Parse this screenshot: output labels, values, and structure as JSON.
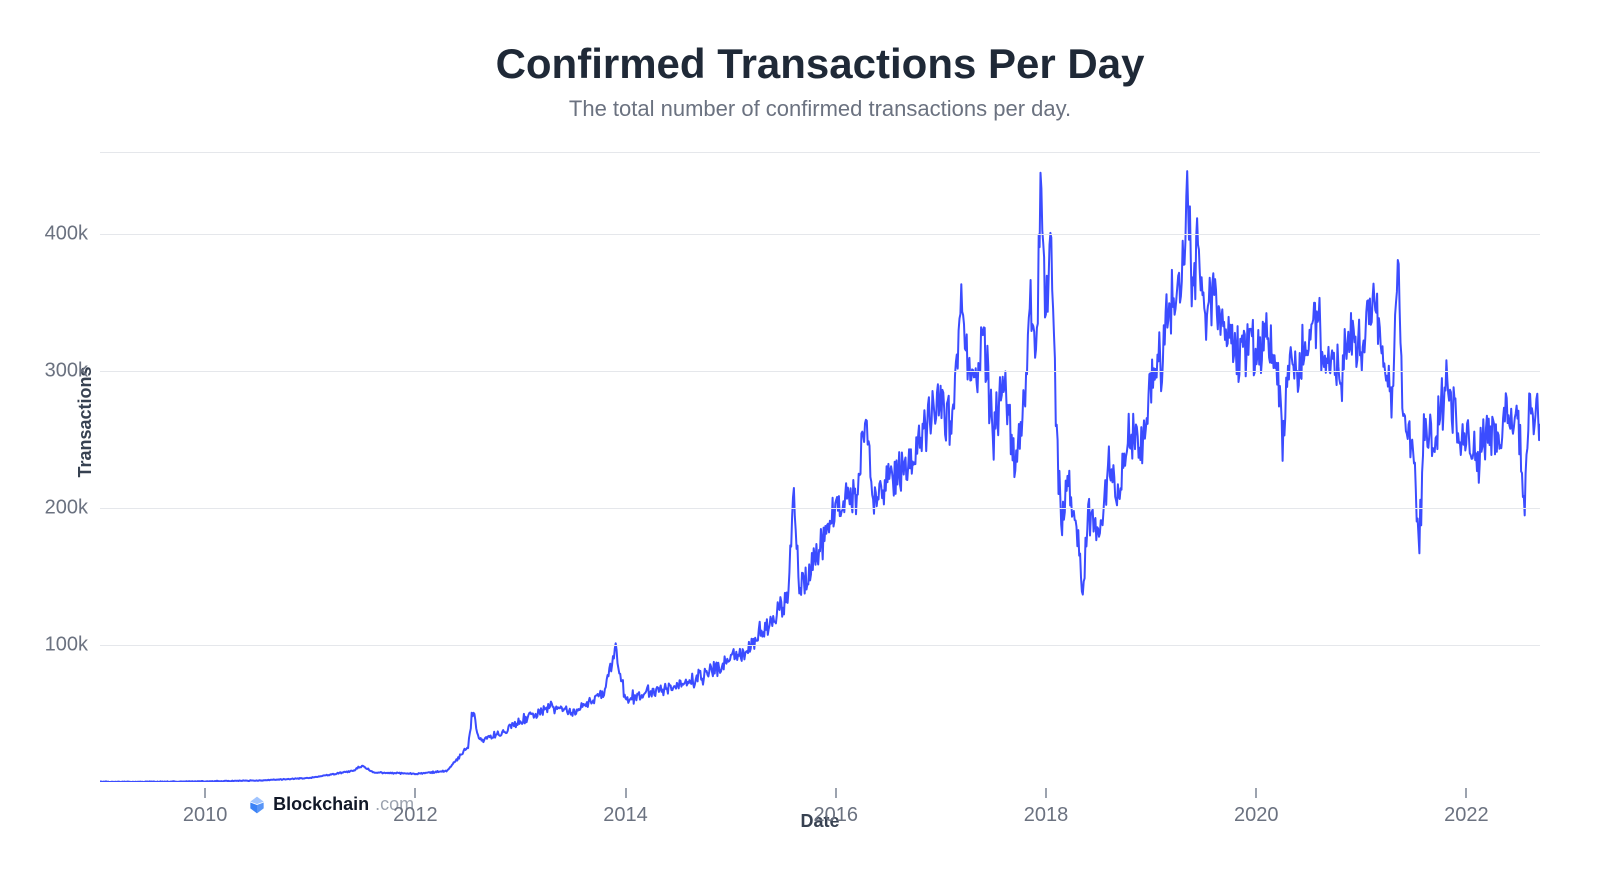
{
  "chart": {
    "type": "line",
    "title": "Confirmed Transactions Per Day",
    "title_fontsize": 42,
    "title_color": "#1f2937",
    "subtitle": "The total number of confirmed transactions per day.",
    "subtitle_fontsize": 22,
    "subtitle_color": "#6b7280",
    "ylabel": "Transactions",
    "xlabel": "Date",
    "axis_label_fontsize": 18,
    "axis_label_color": "#374151",
    "tick_label_fontsize": 20,
    "tick_label_color": "#6b7280",
    "background_color": "#ffffff",
    "grid_color": "#e5e7eb",
    "line_color": "#3b4cff",
    "line_width": 2,
    "xlim": [
      2009,
      2022.7
    ],
    "ylim": [
      0,
      460000
    ],
    "y_ticks": [
      {
        "value": 100000,
        "label": "100k"
      },
      {
        "value": 200000,
        "label": "200k"
      },
      {
        "value": 300000,
        "label": "300k"
      },
      {
        "value": 400000,
        "label": "400k"
      }
    ],
    "x_ticks": [
      {
        "value": 2010,
        "label": "2010"
      },
      {
        "value": 2012,
        "label": "2012"
      },
      {
        "value": 2014,
        "label": "2014"
      },
      {
        "value": 2016,
        "label": "2016"
      },
      {
        "value": 2018,
        "label": "2018"
      },
      {
        "value": 2020,
        "label": "2020"
      },
      {
        "value": 2022,
        "label": "2022"
      }
    ],
    "plot_top_gridline": true,
    "series": {
      "noise_amplitude_factor": 0.12,
      "noise_frequency": 80,
      "anchors": [
        {
          "x": 2009.0,
          "y": 100
        },
        {
          "x": 2009.5,
          "y": 200
        },
        {
          "x": 2010.0,
          "y": 500
        },
        {
          "x": 2010.5,
          "y": 1000
        },
        {
          "x": 2011.0,
          "y": 3000
        },
        {
          "x": 2011.4,
          "y": 8000
        },
        {
          "x": 2011.5,
          "y": 12000
        },
        {
          "x": 2011.6,
          "y": 7000
        },
        {
          "x": 2012.0,
          "y": 6000
        },
        {
          "x": 2012.3,
          "y": 8000
        },
        {
          "x": 2012.5,
          "y": 25000
        },
        {
          "x": 2012.55,
          "y": 55000
        },
        {
          "x": 2012.6,
          "y": 30000
        },
        {
          "x": 2012.8,
          "y": 35000
        },
        {
          "x": 2013.0,
          "y": 45000
        },
        {
          "x": 2013.3,
          "y": 55000
        },
        {
          "x": 2013.5,
          "y": 50000
        },
        {
          "x": 2013.8,
          "y": 65000
        },
        {
          "x": 2013.9,
          "y": 98000
        },
        {
          "x": 2014.0,
          "y": 60000
        },
        {
          "x": 2014.2,
          "y": 65000
        },
        {
          "x": 2014.5,
          "y": 70000
        },
        {
          "x": 2014.8,
          "y": 80000
        },
        {
          "x": 2015.0,
          "y": 90000
        },
        {
          "x": 2015.2,
          "y": 100000
        },
        {
          "x": 2015.4,
          "y": 120000
        },
        {
          "x": 2015.55,
          "y": 135000
        },
        {
          "x": 2015.6,
          "y": 210000
        },
        {
          "x": 2015.65,
          "y": 140000
        },
        {
          "x": 2015.8,
          "y": 160000
        },
        {
          "x": 2016.0,
          "y": 200000
        },
        {
          "x": 2016.2,
          "y": 210000
        },
        {
          "x": 2016.3,
          "y": 270000
        },
        {
          "x": 2016.35,
          "y": 200000
        },
        {
          "x": 2016.5,
          "y": 220000
        },
        {
          "x": 2016.7,
          "y": 230000
        },
        {
          "x": 2016.9,
          "y": 270000
        },
        {
          "x": 2017.0,
          "y": 280000
        },
        {
          "x": 2017.1,
          "y": 260000
        },
        {
          "x": 2017.2,
          "y": 350000
        },
        {
          "x": 2017.3,
          "y": 280000
        },
        {
          "x": 2017.4,
          "y": 330000
        },
        {
          "x": 2017.5,
          "y": 250000
        },
        {
          "x": 2017.6,
          "y": 300000
        },
        {
          "x": 2017.7,
          "y": 230000
        },
        {
          "x": 2017.8,
          "y": 280000
        },
        {
          "x": 2017.85,
          "y": 370000
        },
        {
          "x": 2017.9,
          "y": 300000
        },
        {
          "x": 2017.95,
          "y": 425000
        },
        {
          "x": 2018.0,
          "y": 350000
        },
        {
          "x": 2018.05,
          "y": 380000
        },
        {
          "x": 2018.1,
          "y": 250000
        },
        {
          "x": 2018.15,
          "y": 180000
        },
        {
          "x": 2018.2,
          "y": 220000
        },
        {
          "x": 2018.3,
          "y": 180000
        },
        {
          "x": 2018.35,
          "y": 135000
        },
        {
          "x": 2018.4,
          "y": 200000
        },
        {
          "x": 2018.5,
          "y": 180000
        },
        {
          "x": 2018.6,
          "y": 230000
        },
        {
          "x": 2018.7,
          "y": 210000
        },
        {
          "x": 2018.8,
          "y": 260000
        },
        {
          "x": 2018.9,
          "y": 240000
        },
        {
          "x": 2019.0,
          "y": 290000
        },
        {
          "x": 2019.1,
          "y": 310000
        },
        {
          "x": 2019.2,
          "y": 350000
        },
        {
          "x": 2019.3,
          "y": 370000
        },
        {
          "x": 2019.35,
          "y": 445000
        },
        {
          "x": 2019.4,
          "y": 350000
        },
        {
          "x": 2019.45,
          "y": 400000
        },
        {
          "x": 2019.5,
          "y": 340000
        },
        {
          "x": 2019.6,
          "y": 360000
        },
        {
          "x": 2019.7,
          "y": 330000
        },
        {
          "x": 2019.8,
          "y": 310000
        },
        {
          "x": 2019.9,
          "y": 320000
        },
        {
          "x": 2020.0,
          "y": 310000
        },
        {
          "x": 2020.1,
          "y": 330000
        },
        {
          "x": 2020.2,
          "y": 300000
        },
        {
          "x": 2020.25,
          "y": 240000
        },
        {
          "x": 2020.3,
          "y": 310000
        },
        {
          "x": 2020.4,
          "y": 300000
        },
        {
          "x": 2020.5,
          "y": 320000
        },
        {
          "x": 2020.6,
          "y": 330000
        },
        {
          "x": 2020.7,
          "y": 310000
        },
        {
          "x": 2020.8,
          "y": 300000
        },
        {
          "x": 2020.9,
          "y": 330000
        },
        {
          "x": 2021.0,
          "y": 320000
        },
        {
          "x": 2021.1,
          "y": 350000
        },
        {
          "x": 2021.2,
          "y": 310000
        },
        {
          "x": 2021.3,
          "y": 280000
        },
        {
          "x": 2021.35,
          "y": 380000
        },
        {
          "x": 2021.4,
          "y": 270000
        },
        {
          "x": 2021.5,
          "y": 240000
        },
        {
          "x": 2021.55,
          "y": 170000
        },
        {
          "x": 2021.6,
          "y": 260000
        },
        {
          "x": 2021.7,
          "y": 250000
        },
        {
          "x": 2021.8,
          "y": 290000
        },
        {
          "x": 2021.9,
          "y": 260000
        },
        {
          "x": 2022.0,
          "y": 250000
        },
        {
          "x": 2022.1,
          "y": 230000
        },
        {
          "x": 2022.2,
          "y": 260000
        },
        {
          "x": 2022.3,
          "y": 250000
        },
        {
          "x": 2022.4,
          "y": 270000
        },
        {
          "x": 2022.5,
          "y": 255000
        },
        {
          "x": 2022.55,
          "y": 200000
        },
        {
          "x": 2022.6,
          "y": 280000
        },
        {
          "x": 2022.7,
          "y": 260000
        }
      ]
    },
    "attribution": {
      "brand": "Blockchain",
      "tld": ".com",
      "icon_color_top": "#a0c4ff",
      "icon_color_bottom": "#3b82f6",
      "position_x_year": 2010.4,
      "position_y_value": -9000
    }
  }
}
